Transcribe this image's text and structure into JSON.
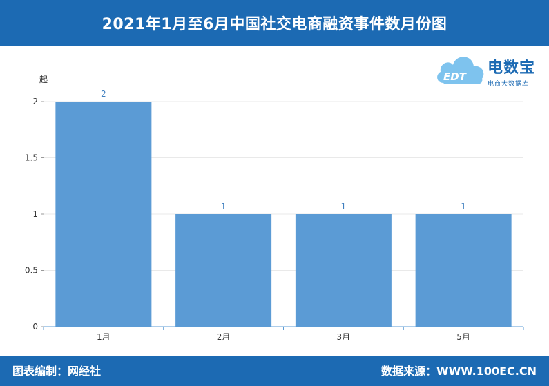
{
  "header": {
    "title": "2021年1月至6月中国社交电商融资事件数月份图"
  },
  "footer": {
    "left_text": "图表编制：网经社",
    "right_text": "数据来源：WWW.100EC.CN"
  },
  "logo": {
    "brand": "电数宝",
    "subtitle": "电商大数据库",
    "mark_text": "EDT"
  },
  "colors": {
    "header_bg": "#1c6ab3",
    "bar": "#5b9bd5",
    "label": "#3f7fbf",
    "axis": "#5b9bd5",
    "grid": "#e9e9e9"
  },
  "chart_data": {
    "type": "bar",
    "title": "2021年1月至6月中国社交电商融资事件数月份图",
    "categories": [
      "1月",
      "2月",
      "3月",
      "5月"
    ],
    "values": [
      2,
      1,
      1,
      1
    ],
    "ylabel": "起",
    "xlabel": "",
    "ylim": [
      0,
      2
    ],
    "yticks": [
      0,
      0.5,
      1,
      1.5,
      2
    ],
    "ytick_labels": [
      "0",
      "0.5",
      "1",
      "1.5",
      "2"
    ],
    "data_labels": [
      "2",
      "1",
      "1",
      "1"
    ],
    "grid": true,
    "legend": "none"
  }
}
